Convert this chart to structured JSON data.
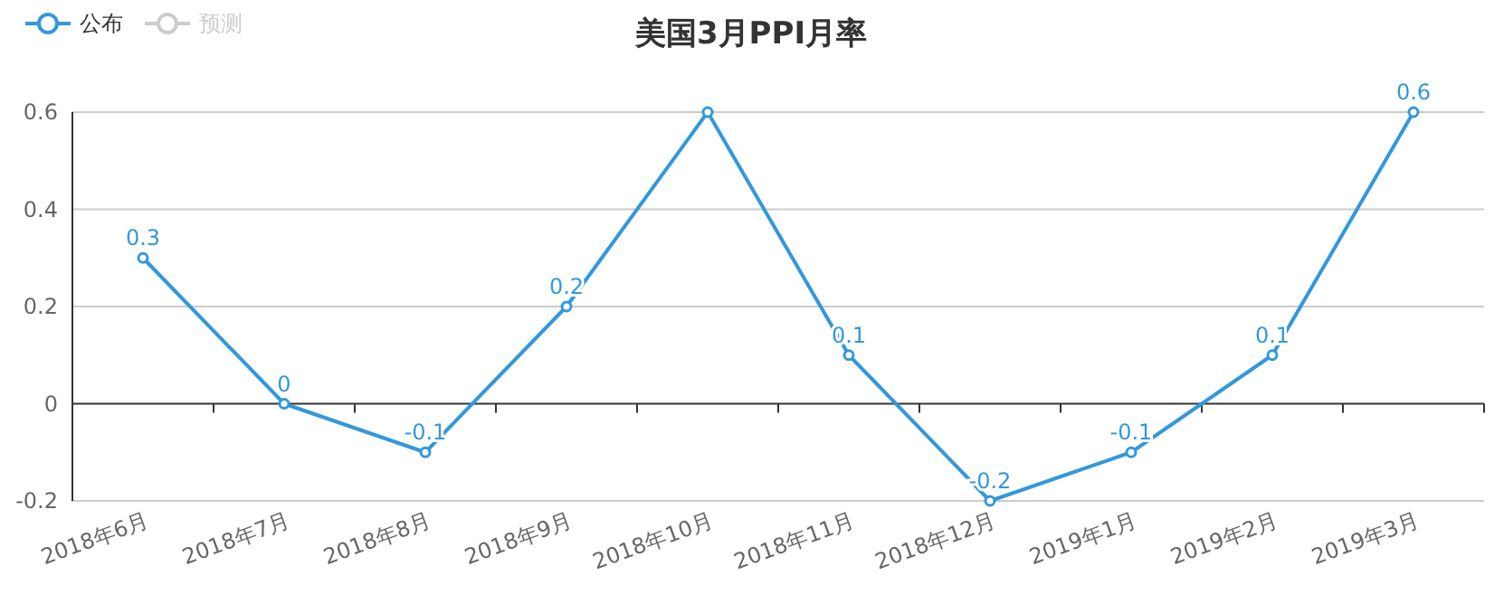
{
  "chart_data": {
    "type": "line",
    "title": "美国3月PPI月率",
    "categories": [
      "2018年6月",
      "2018年7月",
      "2018年8月",
      "2018年9月",
      "2018年10月",
      "2018年11月",
      "2018年12月",
      "2019年1月",
      "2019年2月",
      "2019年3月"
    ],
    "series": [
      {
        "name": "公布",
        "color": "#3398db",
        "values": [
          0.3,
          0,
          -0.1,
          0.2,
          0.6,
          0.1,
          -0.2,
          -0.1,
          0.1,
          0.6
        ],
        "value_labels": [
          "0.3",
          "0",
          "-0.1",
          "0.2",
          null,
          "0.1",
          "-0.2",
          "-0.1",
          "0.1",
          "0.6"
        ]
      },
      {
        "name": "预测",
        "color": "#cccccc",
        "values": [
          null,
          null,
          null,
          null,
          null,
          null,
          null,
          null,
          null,
          null
        ]
      }
    ],
    "ylim": [
      -0.2,
      0.6
    ],
    "yticks": [
      -0.2,
      0,
      0.2,
      0.4,
      0.6
    ],
    "grid": "y",
    "legend": "top left",
    "marker": "circle",
    "line_style": "solid"
  }
}
